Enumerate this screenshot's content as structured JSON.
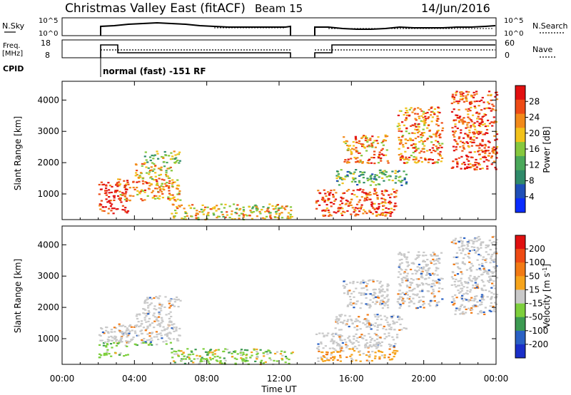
{
  "header": {
    "title": "Christmas Valley East (fitACF)",
    "beam": "Beam 15",
    "date": "14/Jun/2016"
  },
  "top_panels": {
    "nsky_label": "N.Sky",
    "nsky_ticks": [
      "10^5",
      "10^0"
    ],
    "nsearch_label": "N.Search",
    "nsearch_ticks": [
      "10^5",
      "10^0"
    ],
    "freq_label": "Freq.",
    "freq_unit": "[MHz]",
    "freq_ticks": [
      "18",
      "8"
    ],
    "nave_label": "Nave",
    "nave_ticks": [
      "60",
      "0"
    ],
    "cpid_label": "CPID",
    "cpid_text": "normal (fast) -151 RF"
  },
  "chart_data": [
    {
      "type": "heatmap",
      "name": "power",
      "ylabel": "Slant Range [km]",
      "yticks": [
        "1000",
        "2000",
        "3000",
        "4000"
      ],
      "ylim": [
        180,
        4600
      ],
      "xlim": [
        0,
        24
      ],
      "xticks": [
        "00:00",
        "04:00",
        "08:00",
        "12:00",
        "16:00",
        "20:00",
        "00:00"
      ],
      "colorbar_label": "Power [dB]",
      "colorbar_ticks": [
        "28",
        "24",
        "20",
        "16",
        "12",
        "8",
        "4"
      ],
      "colors": [
        "#0a2cff",
        "#1f4fb8",
        "#2f8a6a",
        "#4aa85a",
        "#86c83e",
        "#f2c21b",
        "#f28a1a",
        "#ee4b16",
        "#e21010"
      ],
      "data_gap_hours": [
        12.7,
        14.0
      ],
      "features": [
        {
          "t": [
            2.0,
            3.6
          ],
          "r": [
            400,
            1400
          ],
          "level": 8
        },
        {
          "t": [
            3.0,
            6.5
          ],
          "r": [
            800,
            1500
          ],
          "level": 6
        },
        {
          "t": [
            4.0,
            6.0
          ],
          "r": [
            1500,
            2000
          ],
          "level": 5
        },
        {
          "t": [
            4.5,
            6.5
          ],
          "r": [
            2000,
            2400
          ],
          "level": 4
        },
        {
          "t": [
            6.0,
            12.7
          ],
          "r": [
            200,
            700
          ],
          "level": 5
        },
        {
          "t": [
            14.0,
            18.5
          ],
          "r": [
            300,
            1200
          ],
          "level": 7
        },
        {
          "t": [
            15.0,
            19.0
          ],
          "r": [
            1300,
            1800
          ],
          "level": 3
        },
        {
          "t": [
            15.5,
            18.0
          ],
          "r": [
            2000,
            2900
          ],
          "level": 6
        },
        {
          "t": [
            18.5,
            21.0
          ],
          "r": [
            2000,
            3800
          ],
          "level": 6
        },
        {
          "t": [
            21.5,
            24.0
          ],
          "r": [
            1800,
            4300
          ],
          "level": 7
        }
      ]
    },
    {
      "type": "heatmap",
      "name": "velocity",
      "ylabel": "Slant Range [km]",
      "yticks": [
        "1000",
        "2000",
        "3000",
        "4000"
      ],
      "ylim": [
        180,
        4600
      ],
      "xlim": [
        0,
        24
      ],
      "xticks": [
        "00:00",
        "04:00",
        "08:00",
        "12:00",
        "16:00",
        "20:00",
        "00:00"
      ],
      "xlabel": "Time UT",
      "colorbar_label": "Velocity [m s",
      "colorbar_label_sup": "-1",
      "colorbar_label_end": "]",
      "colorbar_ticks": [
        "200",
        "100",
        "50",
        "15",
        "-15",
        "-50",
        "-100",
        "-200"
      ],
      "colors": [
        "#1a2fc8",
        "#2a61c4",
        "#3c9a52",
        "#7dcf3c",
        "#c9c9c9",
        "#f6a41c",
        "#f27a14",
        "#ee4a14",
        "#e01010"
      ],
      "data_gap_hours": [
        12.7,
        14.0
      ]
    }
  ]
}
